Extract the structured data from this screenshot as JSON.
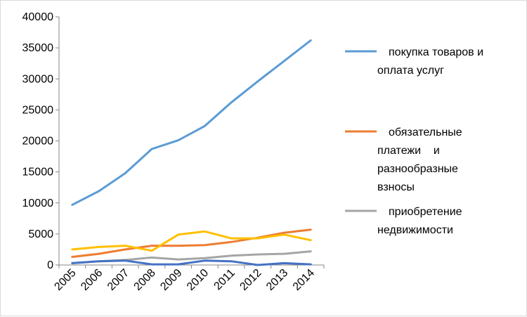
{
  "chart_data": {
    "type": "line",
    "title": "",
    "xlabel": "",
    "ylabel": "",
    "categories": [
      "2005",
      "2006",
      "2007",
      "2008",
      "2009",
      "2010",
      "2011",
      "2012",
      "2013",
      "2014"
    ],
    "ylim": [
      0,
      40000
    ],
    "yticks": [
      "0",
      "5000",
      "10000",
      "15000",
      "20000",
      "25000",
      "30000",
      "35000",
      "40000"
    ],
    "grid": false,
    "legend_position": "right",
    "series": [
      {
        "name": "покупка товаров и оплата услуг",
        "legend_lines": [
          "покупка товаров и",
          "оплата услуг"
        ],
        "color": "#5B9BD5",
        "values": [
          9700,
          11900,
          14800,
          18700,
          20100,
          22400,
          26200,
          29600,
          32900,
          36200
        ]
      },
      {
        "name": "обязательные платежи и разнообразные взносы",
        "legend_lines": [
          "обязательные",
          "платежи    и",
          "разнообразные",
          "взносы"
        ],
        "color": "#ED7D31",
        "values": [
          1300,
          1800,
          2500,
          3100,
          3100,
          3200,
          3700,
          4400,
          5200,
          5700
        ]
      },
      {
        "name": "приобретение недвижимости",
        "legend_lines": [
          "приобретение",
          "недвижимости"
        ],
        "color": "#A5A5A5",
        "values": [
          300,
          600,
          800,
          1200,
          900,
          1100,
          1500,
          1700,
          1800,
          2200
        ]
      },
      {
        "name": "",
        "legend_lines": [],
        "color": "#FFC000",
        "values": [
          2500,
          2900,
          3100,
          2300,
          4900,
          5400,
          4300,
          4300,
          4900,
          4000
        ]
      },
      {
        "name": "",
        "legend_lines": [],
        "color": "#4472C4",
        "values": [
          300,
          600,
          700,
          100,
          100,
          700,
          600,
          0,
          300,
          100
        ]
      }
    ]
  }
}
